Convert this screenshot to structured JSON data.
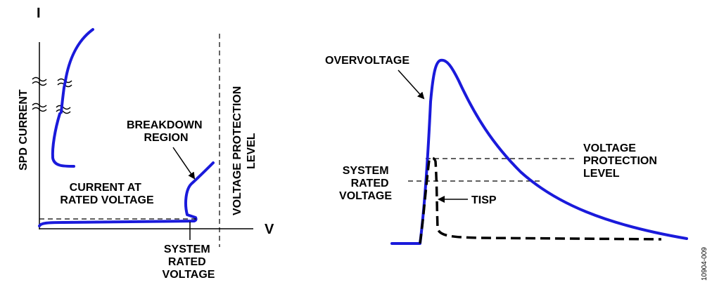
{
  "colors": {
    "curve": "#1a1adb",
    "ink": "#000000",
    "background": "#ffffff"
  },
  "left": {
    "y_axis_label": "I",
    "x_axis_label": "V",
    "y_title": "SPD CURRENT",
    "vertical_level_label": [
      "VOLTAGE PROTECTION",
      "LEVEL"
    ],
    "breakdown_label": [
      "BREAKDOWN",
      "REGION"
    ],
    "current_label": [
      "CURRENT AT",
      "RATED VOLTAGE"
    ],
    "system_label": [
      "SYSTEM",
      "RATED",
      "VOLTAGE"
    ]
  },
  "right": {
    "overvoltage_label": "OVERVOLTAGE",
    "vpl_label": [
      "VOLTAGE",
      "PROTECTION",
      "LEVEL"
    ],
    "system_label": [
      "SYSTEM",
      "RATED",
      "VOLTAGE"
    ],
    "tisp_label": "TISP"
  },
  "figure_id": "10904-009"
}
